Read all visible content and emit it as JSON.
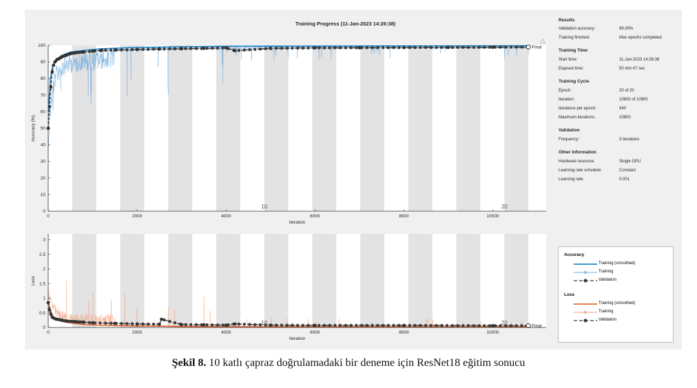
{
  "chart_data": [
    {
      "type": "line",
      "title": "Training Progress (11-Jan-2023 14:26:38)",
      "xlabel": "Iteration",
      "ylabel": "Accuracy (%)",
      "xlim": [
        0,
        11200
      ],
      "ylim": [
        0,
        100
      ],
      "xticks": [
        0,
        2000,
        4000,
        6000,
        8000,
        10000
      ],
      "yticks": [
        0,
        10,
        20,
        30,
        40,
        50,
        60,
        70,
        80,
        90,
        100
      ],
      "epoch_band_width": 540,
      "epoch_labels": [
        {
          "epoch": "10",
          "x": 4860
        },
        {
          "epoch": "20",
          "x": 10260
        }
      ],
      "final_label": "Final",
      "series": [
        {
          "name": "Training (smoothed)",
          "color": "#0072bd",
          "x": [
            0,
            50,
            100,
            200,
            300,
            500,
            800,
            1200,
            2000,
            3000,
            4000,
            6000,
            8000,
            10800
          ],
          "values": [
            60,
            80,
            88,
            92,
            94,
            96,
            97,
            98,
            98.8,
            99.2,
            99.5,
            99.6,
            99.7,
            99.8
          ]
        },
        {
          "name": "Validation",
          "color": "#333333",
          "x": [
            0,
            30,
            60,
            90,
            120,
            150,
            200,
            250,
            300,
            400,
            500,
            600,
            800,
            1000,
            1200,
            1500,
            2000,
            2500,
            3000,
            3500,
            4000,
            4200,
            5000,
            6000,
            7000,
            8000,
            9000,
            10000,
            10800
          ],
          "values": [
            50,
            63,
            75,
            84,
            88,
            90,
            91.5,
            92,
            93,
            94,
            95,
            95.5,
            96,
            96.5,
            97,
            97.2,
            97.5,
            97.8,
            98,
            98.2,
            98.5,
            96.8,
            98.2,
            98.5,
            98.6,
            98.7,
            98.8,
            98.9,
            99
          ]
        }
      ]
    },
    {
      "type": "line",
      "xlabel": "Iteration",
      "ylabel": "Loss",
      "xlim": [
        0,
        11200
      ],
      "ylim": [
        0,
        3.2
      ],
      "xticks": [
        0,
        2000,
        4000,
        6000,
        8000,
        10000
      ],
      "yticks": [
        0,
        0.5,
        1,
        1.5,
        2,
        2.5,
        3
      ],
      "epoch_labels": [
        {
          "epoch": "10",
          "x": 4860
        },
        {
          "epoch": "20",
          "x": 10260
        }
      ],
      "final_label": "Final",
      "series": [
        {
          "name": "Training (smoothed)",
          "color": "#d95319",
          "x": [
            0,
            50,
            100,
            200,
            400,
            800,
            1500,
            3000,
            5000,
            10800
          ],
          "values": [
            0.9,
            0.6,
            0.4,
            0.25,
            0.18,
            0.1,
            0.06,
            0.03,
            0.02,
            0.02
          ]
        },
        {
          "name": "Validation",
          "color": "#333333",
          "x": [
            0,
            30,
            60,
            90,
            150,
            200,
            300,
            400,
            600,
            800,
            1000,
            1500,
            2000,
            2500,
            2550,
            3000,
            3500,
            4000,
            4200,
            5000,
            6000,
            8000,
            10000,
            10800
          ],
          "values": [
            0.85,
            0.6,
            0.45,
            0.35,
            0.3,
            0.28,
            0.25,
            0.22,
            0.2,
            0.18,
            0.16,
            0.14,
            0.12,
            0.11,
            0.28,
            0.1,
            0.09,
            0.08,
            0.12,
            0.08,
            0.07,
            0.07,
            0.06,
            0.06
          ]
        }
      ]
    }
  ],
  "results": {
    "heading": "Results",
    "validation_accuracy_label": "Validation accuracy:",
    "validation_accuracy": "99.00%",
    "training_finished_label": "Training finished:",
    "training_finished": "Max epochs completed"
  },
  "training_time": {
    "heading": "Training Time",
    "start_time_label": "Start time:",
    "start_time": "11-Jan-2023 14:26:38",
    "elapsed_time_label": "Elapsed time:",
    "elapsed_time": "50 min 47 sec"
  },
  "training_cycle": {
    "heading": "Training Cycle",
    "epoch_label": "Epoch:",
    "epoch": "20 of 20",
    "iteration_label": "Iteration:",
    "iteration": "10800 of 10800",
    "iterations_per_epoch_label": "Iterations per epoch:",
    "iterations_per_epoch": "540",
    "maximum_iterations_label": "Maximum iterations:",
    "maximum_iterations": "10800"
  },
  "validation": {
    "heading": "Validation",
    "frequency_label": "Frequency:",
    "frequency": "3 iterations"
  },
  "other_information": {
    "heading": "Other Information",
    "hardware_resource_label": "Hardware resource:",
    "hardware_resource": "Single GPU",
    "learning_rate_schedule_label": "Learning rate schedule:",
    "learning_rate_schedule": "Constant",
    "learning_rate_label": "Learning rate:",
    "learning_rate": "0.001"
  },
  "legend": {
    "accuracy_heading": "Accuracy",
    "loss_heading": "Loss",
    "training_smoothed": "Training (smoothed)",
    "training": "Training",
    "validation": "Validation",
    "colors": {
      "acc_smoothed": "#0072bd",
      "acc_raw": "#8fbfe6",
      "loss_smoothed": "#d95319",
      "loss_raw": "#f0b69a",
      "validation": "#333333"
    }
  },
  "caption": {
    "label": "Şekil 8.",
    "text": " 10 katlı çapraz doğrulamadaki bir deneme için ResNet18 eğitim sonucu"
  }
}
